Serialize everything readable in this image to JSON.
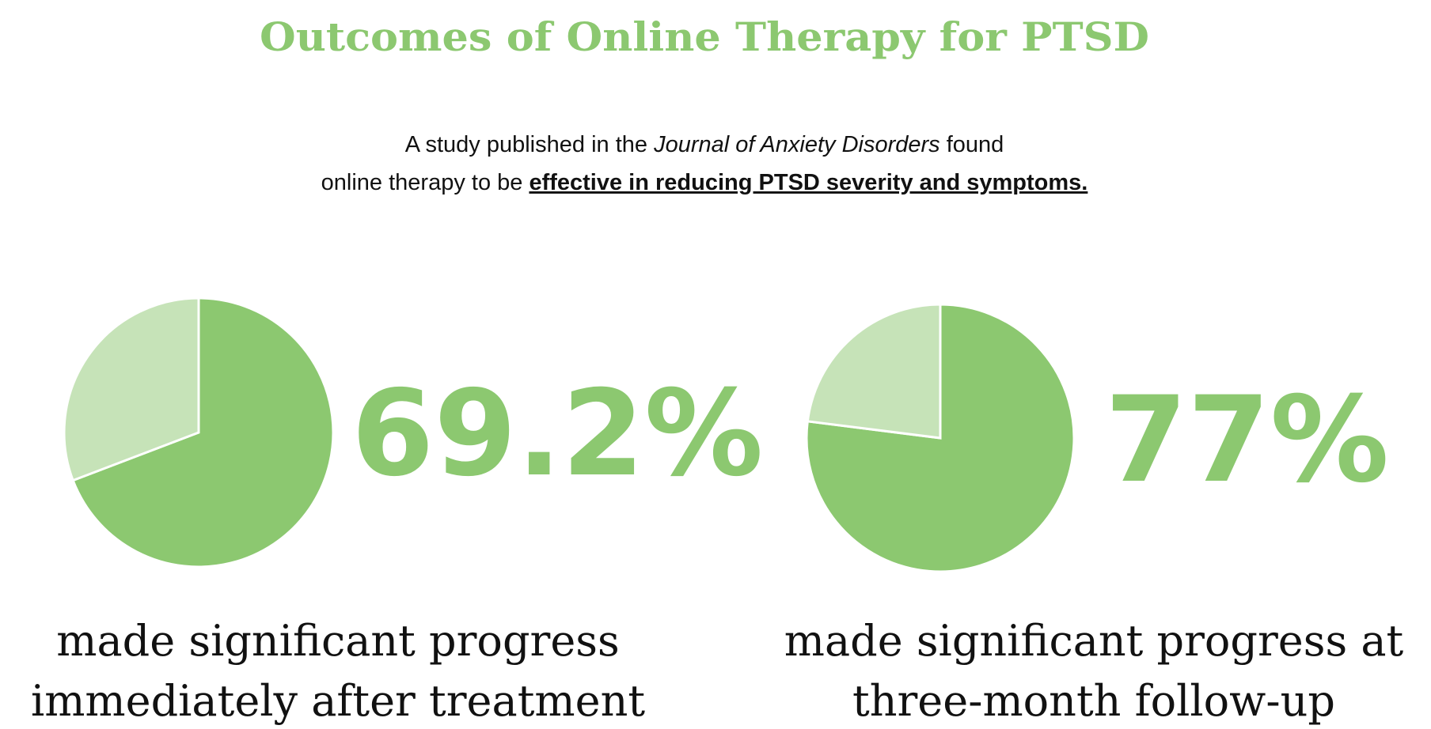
{
  "header": {
    "title": "Outcomes of Online Therapy for PTSD",
    "subtitle": [
      "A study published in the ",
      "Journal of Anxiety Disorders",
      " found",
      "online therapy to be ",
      "effective in reducing PTSD severity and symptoms."
    ]
  },
  "chart_data": [
    {
      "type": "pie",
      "categories": [
        null,
        null
      ],
      "values": [
        69.2,
        30.8
      ],
      "value_labels": [
        "69.2%",
        null
      ],
      "colors": [
        "#8cc870",
        "#c6e3b8"
      ],
      "caption": [
        "made significant progress",
        "immediately after treatment"
      ]
    },
    {
      "type": "pie",
      "categories": [
        null,
        null
      ],
      "values": [
        77,
        23
      ],
      "value_labels": [
        "77%",
        null
      ],
      "colors": [
        "#8cc870",
        "#c6e3b8"
      ],
      "caption": [
        "made significant progress at",
        "three-month follow-up"
      ]
    }
  ]
}
